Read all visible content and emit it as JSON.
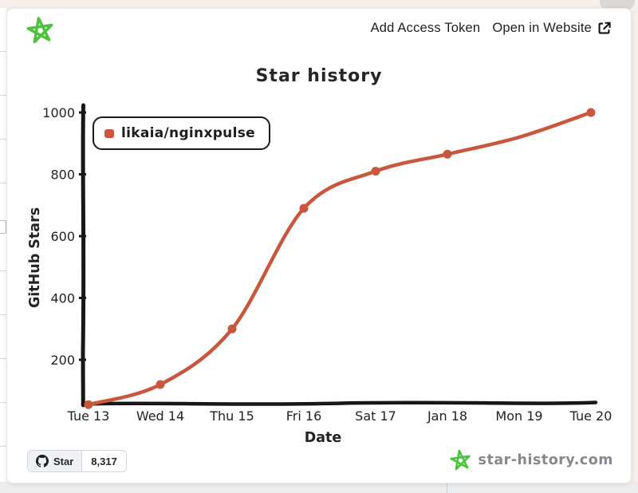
{
  "window": {
    "background_top": "#f7efeb",
    "backdrop_bottom": "#ecedee"
  },
  "header": {
    "links": [
      {
        "label": "Add Access Token"
      },
      {
        "label": "Open in Website"
      }
    ]
  },
  "chart_data": {
    "type": "line",
    "title": "Star history",
    "xlabel": "Date",
    "ylabel": "GitHub Stars",
    "x_ticks": [
      "Tue 13",
      "Wed 14",
      "Thu 15",
      "Fri 16",
      "Sat 17",
      "Jan 18",
      "Mon 19",
      "Tue 20"
    ],
    "y_ticks": [
      200,
      400,
      600,
      800,
      1000
    ],
    "ylim": [
      0,
      1050
    ],
    "grid": false,
    "legend_position": "top-left",
    "series": [
      {
        "name": "likaia/nginxpulse",
        "color": "#c9573e",
        "values": [
          55,
          120,
          300,
          690,
          810,
          865,
          920,
          1000
        ],
        "markers": [
          true,
          true,
          true,
          true,
          true,
          true,
          false,
          true
        ]
      }
    ]
  },
  "footer": {
    "github_button": {
      "label": "Star",
      "count": "8,317"
    },
    "brand": "star-history.com"
  },
  "icons": {
    "logo": "hand-drawn-green-star",
    "external_link": "arrow-out-of-box",
    "github": "octocat-mark"
  },
  "colors": {
    "accent_green": "#4bc43d",
    "series_red": "#c9573e",
    "axis_black": "#171717",
    "brand_gray": "#85898f"
  }
}
